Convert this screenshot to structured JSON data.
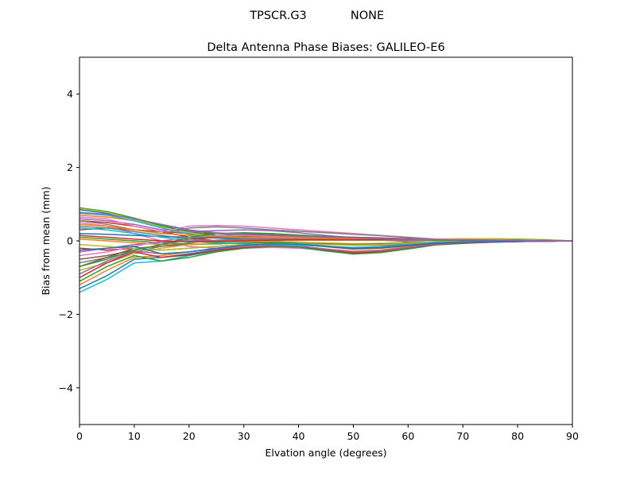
{
  "figure": {
    "suptitle_left": "TPSCR.G3",
    "suptitle_right": "NONE"
  },
  "chart_data": {
    "type": "line",
    "title": "Delta Antenna Phase Biases: GALILEO-E6",
    "xlabel": "Elvation angle (degrees)",
    "ylabel": "Bias from mean (mm)",
    "xlim": [
      0,
      90
    ],
    "ylim": [
      -5,
      5
    ],
    "xticks": [
      0,
      10,
      20,
      30,
      40,
      50,
      60,
      70,
      80,
      90
    ],
    "yticks": [
      -4,
      -2,
      0,
      2,
      4
    ],
    "ytick_labels": [
      "−4",
      "−2",
      "0",
      "2",
      "4"
    ],
    "grid": false,
    "legend": "none",
    "x": [
      0,
      5,
      10,
      15,
      20,
      25,
      30,
      35,
      40,
      45,
      50,
      55,
      60,
      65,
      70,
      75,
      80,
      85,
      90
    ],
    "series": [
      {
        "color": "#1f77b4",
        "values": [
          0.85,
          0.75,
          0.6,
          0.4,
          0.25,
          0.15,
          0.1,
          0.08,
          0.06,
          0.05,
          0.04,
          0.04,
          0.05,
          0.05,
          0.04,
          0.03,
          0.02,
          0.01,
          0.0
        ]
      },
      {
        "color": "#ff7f0e",
        "values": [
          0.7,
          0.65,
          0.55,
          0.35,
          0.2,
          0.1,
          0.05,
          0.03,
          0.02,
          0.02,
          0.02,
          0.02,
          0.02,
          0.03,
          0.04,
          0.04,
          0.03,
          0.02,
          0.0
        ]
      },
      {
        "color": "#2ca02c",
        "values": [
          0.9,
          0.8,
          0.62,
          0.42,
          0.28,
          0.2,
          0.15,
          0.12,
          0.1,
          0.08,
          0.06,
          0.05,
          0.04,
          0.04,
          0.05,
          0.06,
          0.05,
          0.03,
          0.0
        ]
      },
      {
        "color": "#d62728",
        "values": [
          0.55,
          0.5,
          0.4,
          0.25,
          0.1,
          0.0,
          -0.05,
          -0.05,
          -0.06,
          -0.08,
          -0.1,
          -0.1,
          -0.08,
          -0.05,
          -0.02,
          0.0,
          0.0,
          0.0,
          0.0
        ]
      },
      {
        "color": "#9467bd",
        "values": [
          0.6,
          0.55,
          0.45,
          0.3,
          0.25,
          0.28,
          0.3,
          0.28,
          0.22,
          0.15,
          0.08,
          0.02,
          -0.02,
          -0.03,
          -0.02,
          0.0,
          0.01,
          0.01,
          0.0
        ]
      },
      {
        "color": "#8c564b",
        "values": [
          0.3,
          0.35,
          0.3,
          0.25,
          0.2,
          0.2,
          0.2,
          0.18,
          0.15,
          0.12,
          0.1,
          0.08,
          0.06,
          0.04,
          0.03,
          0.02,
          0.01,
          0.0,
          0.0
        ]
      },
      {
        "color": "#e377c2",
        "values": [
          0.5,
          0.4,
          0.2,
          0.0,
          -0.15,
          -0.2,
          -0.2,
          -0.18,
          -0.2,
          -0.25,
          -0.3,
          -0.25,
          -0.15,
          -0.08,
          -0.05,
          -0.03,
          -0.02,
          -0.01,
          0.0
        ]
      },
      {
        "color": "#7f7f7f",
        "values": [
          0.4,
          0.35,
          0.25,
          0.15,
          0.05,
          0.0,
          -0.02,
          -0.03,
          -0.05,
          -0.08,
          -0.12,
          -0.12,
          -0.1,
          -0.06,
          -0.03,
          -0.01,
          0.0,
          0.0,
          0.0
        ]
      },
      {
        "color": "#bcbd22",
        "values": [
          0.88,
          0.78,
          0.58,
          0.38,
          0.22,
          0.12,
          0.08,
          0.05,
          0.04,
          0.03,
          0.03,
          0.03,
          0.04,
          0.05,
          0.06,
          0.06,
          0.04,
          0.02,
          0.0
        ]
      },
      {
        "color": "#17becf",
        "values": [
          0.75,
          0.7,
          0.55,
          0.35,
          0.18,
          0.08,
          0.02,
          -0.02,
          -0.05,
          -0.08,
          -0.1,
          -0.08,
          -0.05,
          -0.02,
          0.0,
          0.02,
          0.02,
          0.01,
          0.0
        ]
      },
      {
        "color": "#1f77b4",
        "values": [
          0.2,
          0.18,
          0.15,
          0.12,
          0.1,
          0.08,
          0.06,
          0.05,
          0.04,
          0.03,
          0.03,
          0.02,
          0.02,
          0.02,
          0.02,
          0.02,
          0.01,
          0.01,
          0.0
        ]
      },
      {
        "color": "#ff7f0e",
        "values": [
          0.05,
          0.0,
          -0.05,
          -0.1,
          -0.1,
          -0.08,
          -0.05,
          -0.04,
          -0.05,
          -0.06,
          -0.08,
          -0.07,
          -0.05,
          -0.03,
          -0.02,
          -0.01,
          0.0,
          0.0,
          0.0
        ]
      },
      {
        "color": "#2ca02c",
        "values": [
          0.1,
          0.05,
          0.0,
          -0.05,
          -0.08,
          -0.08,
          -0.06,
          -0.05,
          -0.06,
          -0.08,
          -0.1,
          -0.08,
          -0.05,
          -0.03,
          -0.01,
          0.0,
          0.0,
          0.0,
          0.0
        ]
      },
      {
        "color": "#d62728",
        "values": [
          -0.2,
          -0.25,
          -0.2,
          -0.15,
          -0.1,
          -0.05,
          -0.02,
          0.0,
          0.01,
          0.02,
          0.03,
          0.03,
          0.02,
          0.02,
          0.02,
          0.01,
          0.01,
          0.0,
          0.0
        ]
      },
      {
        "color": "#9467bd",
        "values": [
          -0.3,
          -0.2,
          -0.1,
          -0.05,
          0.0,
          0.02,
          0.03,
          0.03,
          0.03,
          0.02,
          0.02,
          0.02,
          0.02,
          0.02,
          0.02,
          0.01,
          0.01,
          0.0,
          0.0
        ]
      },
      {
        "color": "#8c564b",
        "values": [
          -0.5,
          -0.4,
          -0.25,
          -0.1,
          0.05,
          0.1,
          0.12,
          0.12,
          0.1,
          0.08,
          0.06,
          0.04,
          0.03,
          0.02,
          0.02,
          0.02,
          0.01,
          0.0,
          0.0
        ]
      },
      {
        "color": "#e377c2",
        "values": [
          -0.4,
          -0.3,
          -0.15,
          0.0,
          0.1,
          0.15,
          0.15,
          0.12,
          0.1,
          0.08,
          0.06,
          0.05,
          0.04,
          0.03,
          0.03,
          0.02,
          0.01,
          0.0,
          0.0
        ]
      },
      {
        "color": "#7f7f7f",
        "values": [
          -0.6,
          -0.45,
          -0.3,
          -0.15,
          -0.05,
          0.02,
          0.05,
          0.06,
          0.05,
          0.04,
          0.03,
          0.03,
          0.03,
          0.03,
          0.03,
          0.02,
          0.01,
          0.0,
          0.0
        ]
      },
      {
        "color": "#bcbd22",
        "values": [
          -0.8,
          -0.6,
          -0.35,
          -0.2,
          -0.1,
          -0.05,
          -0.02,
          0.0,
          0.01,
          0.02,
          0.02,
          0.02,
          0.02,
          0.02,
          0.02,
          0.01,
          0.01,
          0.0,
          0.0
        ]
      },
      {
        "color": "#17becf",
        "values": [
          -1.4,
          -1.05,
          -0.6,
          -0.55,
          -0.4,
          -0.28,
          -0.2,
          -0.15,
          -0.18,
          -0.28,
          -0.35,
          -0.3,
          -0.2,
          -0.1,
          -0.06,
          -0.04,
          -0.02,
          -0.01,
          0.0
        ]
      },
      {
        "color": "#1f77b4",
        "values": [
          -1.3,
          -0.95,
          -0.5,
          -0.45,
          -0.35,
          -0.25,
          -0.18,
          -0.13,
          -0.16,
          -0.25,
          -0.32,
          -0.28,
          -0.18,
          -0.09,
          -0.05,
          -0.03,
          -0.02,
          -0.01,
          0.0
        ]
      },
      {
        "color": "#ff7f0e",
        "values": [
          -1.2,
          -0.8,
          -0.45,
          -0.4,
          -0.3,
          -0.2,
          -0.15,
          -0.12,
          -0.14,
          -0.22,
          -0.28,
          -0.25,
          -0.16,
          -0.08,
          -0.05,
          -0.03,
          -0.01,
          0.0,
          0.0
        ]
      },
      {
        "color": "#2ca02c",
        "values": [
          -1.1,
          -0.7,
          -0.4,
          -0.55,
          -0.45,
          -0.3,
          -0.2,
          -0.15,
          -0.17,
          -0.27,
          -0.36,
          -0.32,
          -0.22,
          -0.11,
          -0.07,
          -0.04,
          -0.02,
          -0.01,
          0.0
        ]
      },
      {
        "color": "#d62728",
        "values": [
          -1.0,
          -0.6,
          -0.3,
          -0.45,
          -0.38,
          -0.26,
          -0.18,
          -0.13,
          -0.15,
          -0.24,
          -0.33,
          -0.29,
          -0.19,
          -0.1,
          -0.06,
          -0.04,
          -0.02,
          -0.01,
          0.0
        ]
      },
      {
        "color": "#9467bd",
        "values": [
          -0.9,
          -0.55,
          -0.28,
          -0.35,
          -0.3,
          -0.22,
          -0.16,
          -0.12,
          -0.14,
          -0.22,
          -0.3,
          -0.27,
          -0.18,
          -0.09,
          -0.05,
          -0.03,
          -0.02,
          -0.01,
          0.0
        ]
      },
      {
        "color": "#8c564b",
        "values": [
          -0.7,
          -0.45,
          -0.2,
          -0.25,
          -0.2,
          -0.15,
          -0.1,
          -0.08,
          -0.1,
          -0.16,
          -0.22,
          -0.2,
          -0.13,
          -0.07,
          -0.04,
          -0.02,
          -0.01,
          0.0,
          0.0
        ]
      },
      {
        "color": "#e377c2",
        "values": [
          0.65,
          0.6,
          0.4,
          0.25,
          0.4,
          0.42,
          0.4,
          0.35,
          0.3,
          0.25,
          0.2,
          0.15,
          0.1,
          0.05,
          0.03,
          0.02,
          0.01,
          0.0,
          0.0
        ]
      },
      {
        "color": "#7f7f7f",
        "values": [
          0.55,
          0.45,
          0.3,
          0.2,
          0.35,
          0.38,
          0.35,
          0.3,
          0.26,
          0.22,
          0.18,
          0.14,
          0.09,
          0.05,
          0.03,
          0.02,
          0.01,
          0.0,
          0.0
        ]
      },
      {
        "color": "#bcbd22",
        "values": [
          -0.1,
          -0.15,
          -0.2,
          -0.25,
          -0.2,
          -0.15,
          -0.1,
          -0.08,
          -0.08,
          -0.1,
          -0.12,
          -0.1,
          -0.06,
          -0.03,
          -0.01,
          0.0,
          0.0,
          0.0,
          0.0
        ]
      },
      {
        "color": "#17becf",
        "values": [
          0.35,
          0.3,
          0.2,
          0.1,
          0.0,
          -0.05,
          -0.08,
          -0.1,
          -0.12,
          -0.15,
          -0.18,
          -0.16,
          -0.1,
          -0.05,
          -0.02,
          0.0,
          0.01,
          0.0,
          0.0
        ]
      },
      {
        "color": "#1f77b4",
        "values": [
          -0.25,
          -0.2,
          -0.15,
          -0.35,
          -0.3,
          -0.2,
          -0.12,
          -0.08,
          -0.09,
          -0.14,
          -0.2,
          -0.18,
          -0.12,
          -0.06,
          -0.03,
          -0.02,
          -0.01,
          0.0,
          0.0
        ]
      },
      {
        "color": "#ff7f0e",
        "values": [
          0.45,
          0.4,
          0.3,
          0.2,
          0.15,
          0.12,
          0.1,
          0.09,
          0.08,
          0.07,
          0.06,
          0.05,
          0.04,
          0.04,
          0.04,
          0.03,
          0.02,
          0.01,
          0.0
        ]
      },
      {
        "color": "#2ca02c",
        "values": [
          -0.7,
          -0.5,
          -0.25,
          -0.1,
          0.1,
          0.2,
          0.22,
          0.2,
          0.16,
          0.12,
          0.08,
          0.05,
          0.03,
          0.02,
          0.02,
          0.02,
          0.01,
          0.0,
          0.0
        ]
      },
      {
        "color": "#d62728",
        "values": [
          0.15,
          0.1,
          0.05,
          0.0,
          -0.02,
          -0.02,
          0.0,
          0.02,
          0.03,
          0.03,
          0.03,
          0.03,
          0.03,
          0.03,
          0.02,
          0.02,
          0.01,
          0.0,
          0.0
        ]
      },
      {
        "color": "#9467bd",
        "values": [
          0.78,
          0.72,
          0.6,
          0.45,
          0.3,
          0.22,
          0.18,
          0.15,
          0.12,
          0.1,
          0.08,
          0.06,
          0.04,
          0.03,
          0.03,
          0.02,
          0.01,
          0.0,
          0.0
        ]
      }
    ]
  }
}
